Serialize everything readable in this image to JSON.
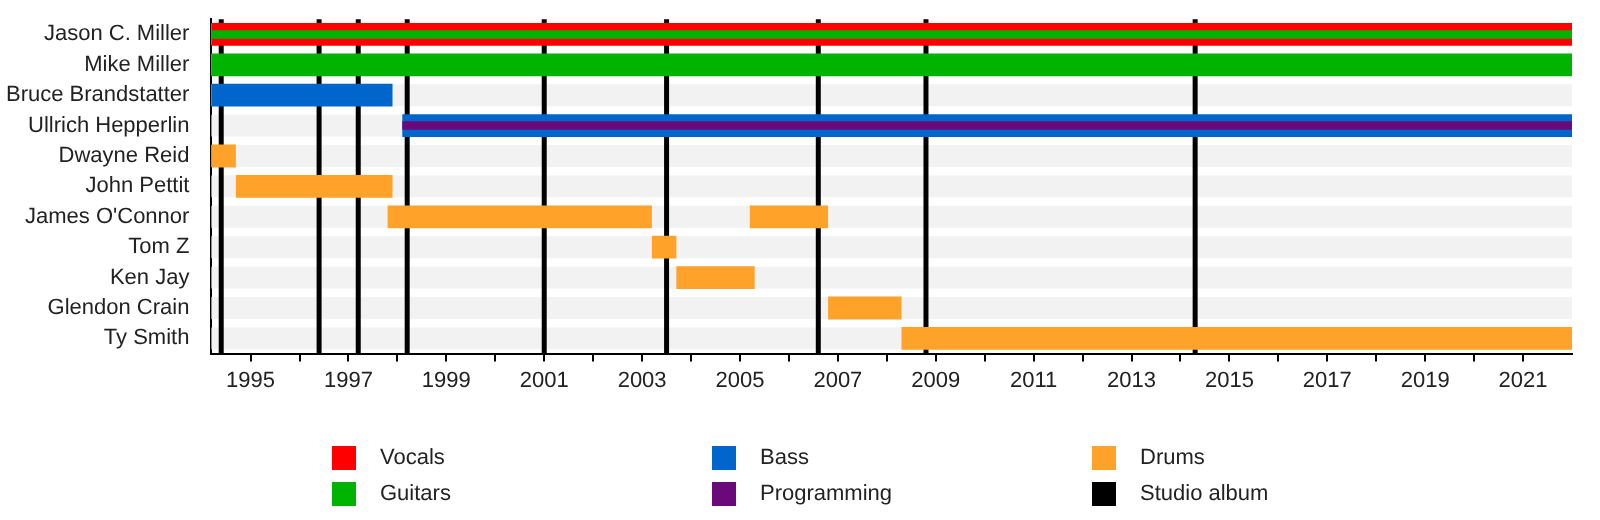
{
  "chart_data": {
    "type": "bar",
    "orientation": "horizontal",
    "legend": "bottom",
    "categories": [
      "Jason C. Miller",
      "Mike Miller",
      "Bruce Brandstatter",
      "Ullrich Hepperlin",
      "Dwayne Reid",
      "John Pettit",
      "James O'Connor",
      "Tom Z",
      "Ken Jay",
      "Glendon Crain",
      "Ty Smith"
    ],
    "series": [
      {
        "name": "Vocals",
        "color": "#ff0000",
        "base": [
          1994.2,
          null,
          null,
          null,
          null,
          null,
          null,
          null,
          null,
          null,
          null
        ],
        "values": [
          27.8,
          null,
          null,
          null,
          null,
          null,
          null,
          null,
          null,
          null,
          null
        ]
      },
      {
        "name": "Guitars",
        "color": "#00b300",
        "base": [
          null,
          1994.2,
          null,
          null,
          null,
          null,
          null,
          null,
          null,
          null,
          null
        ],
        "values": [
          null,
          27.8,
          null,
          null,
          null,
          null,
          null,
          null,
          null,
          null,
          null
        ]
      },
      {
        "color": "#00b300",
        "base": [
          1994.2,
          null,
          null,
          null,
          null,
          null,
          null,
          null,
          null,
          null,
          null
        ],
        "values": [
          27.8,
          null,
          null,
          null,
          null,
          null,
          null,
          null,
          null,
          null,
          null
        ]
      },
      {
        "name": "Bass",
        "color": "#0066cc",
        "base": [
          null,
          null,
          1994.2,
          1998.1,
          null,
          null,
          null,
          null,
          null,
          null,
          null
        ],
        "values": [
          null,
          null,
          3.7,
          23.9,
          null,
          null,
          null,
          null,
          null,
          null,
          null
        ]
      },
      {
        "name": "Programming",
        "color": "#6a0a7a",
        "base": [
          null,
          null,
          null,
          1998.1,
          null,
          null,
          null,
          null,
          null,
          null,
          null
        ],
        "values": [
          null,
          null,
          null,
          23.9,
          null,
          null,
          null,
          null,
          null,
          null,
          null
        ]
      },
      {
        "name": "Drums",
        "color": "#ffa22a",
        "base": [
          null,
          null,
          null,
          null,
          1994.2,
          1994.7,
          1997.8,
          2003.2,
          2003.7,
          2006.8,
          2008.3
        ],
        "values": [
          null,
          null,
          null,
          null,
          0.5,
          3.2,
          5.4,
          0.5,
          1.6,
          1.5,
          13.7
        ]
      },
      {
        "color": "#ffa22a",
        "base": [
          null,
          null,
          null,
          null,
          null,
          null,
          2005.2,
          null,
          null,
          null,
          null
        ],
        "values": [
          null,
          null,
          null,
          null,
          null,
          null,
          1.6,
          null,
          null,
          null,
          null
        ]
      }
    ],
    "xlim": [
      1994.2,
      2022
    ],
    "xticks": [
      1995,
      {
        "value": 1996,
        "label": null
      },
      1997,
      {
        "value": 1998,
        "label": null
      },
      1999,
      {
        "value": 2000,
        "label": null
      },
      2001,
      {
        "value": 2002,
        "label": null
      },
      2003,
      {
        "value": 2004,
        "label": null
      },
      2005,
      {
        "value": 2006,
        "label": null
      },
      2007,
      {
        "value": 2008,
        "label": null
      },
      2009,
      {
        "value": 2010,
        "label": null
      },
      2011,
      {
        "value": 2012,
        "label": null
      },
      2013,
      {
        "value": 2014,
        "label": null
      },
      2015,
      {
        "value": 2016,
        "label": null
      },
      2017,
      {
        "value": 2018,
        "label": null
      },
      2019,
      {
        "value": 2020,
        "label": null
      },
      2021
    ],
    "ref_lines": [
      {
        "axis": "x",
        "value": 1994.4,
        "label": "Studio album",
        "color": "#000000"
      },
      {
        "axis": "x",
        "value": 1996.4,
        "color": "#000000"
      },
      {
        "axis": "x",
        "value": 1997.2,
        "color": "#000000"
      },
      {
        "axis": "x",
        "value": 1998.2,
        "color": "#000000"
      },
      {
        "axis": "x",
        "value": 2001.0,
        "color": "#000000"
      },
      {
        "axis": "x",
        "value": 2003.5,
        "color": "#000000"
      },
      {
        "axis": "x",
        "value": 2006.6,
        "color": "#000000"
      },
      {
        "axis": "x",
        "value": 2008.8,
        "color": "#000000"
      },
      {
        "axis": "x",
        "value": 2014.3,
        "color": "#000000"
      }
    ]
  }
}
